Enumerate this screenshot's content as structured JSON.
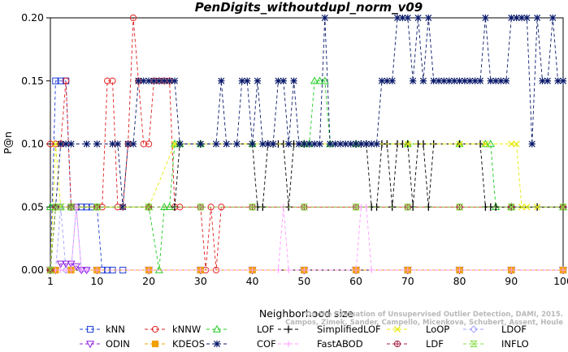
{
  "chart_data": {
    "type": "line",
    "title": "PenDigits_withoutdupl_norm_v09",
    "xlabel": "Neighborhood size",
    "ylabel": "P@n",
    "xlim": [
      1,
      100
    ],
    "ylim": [
      0,
      0.2
    ],
    "x_ticks": [
      "1",
      "10",
      "20",
      "30",
      "40",
      "50",
      "60",
      "70",
      "80",
      "90",
      "100"
    ],
    "y_ticks": [
      "0.00",
      "0.05",
      "0.10",
      "0.15",
      "0.20"
    ],
    "grid": false,
    "legend_position": "bottom",
    "watermark": [
      "On the Evaluation of Unsupervised Outlier Detection, DAMI, 2015.",
      "Campos, Zimek, Sander, Campello, Micenkova, Schubert, Assent, Houle"
    ],
    "series": [
      {
        "name": "kNN",
        "color": "#1f3fd8",
        "marker": "square",
        "x": [
          1,
          2,
          3,
          4,
          5,
          6,
          7,
          8,
          9,
          10,
          11,
          12,
          13,
          15,
          20,
          30,
          40,
          50,
          60,
          70,
          80,
          90,
          100
        ],
        "y": [
          0.0,
          0.15,
          0.15,
          0.15,
          0.05,
          0.05,
          0.05,
          0.05,
          0.05,
          0.05,
          0.0,
          0.0,
          0.0,
          0.0,
          0.0,
          0.0,
          0.0,
          0.0,
          0.0,
          0.0,
          0.0,
          0.0,
          0.0
        ]
      },
      {
        "name": "kNNW",
        "color": "#e02020",
        "marker": "circle",
        "x": [
          1,
          2,
          3,
          4,
          5,
          6,
          10,
          11,
          12,
          13,
          14,
          15,
          16,
          17,
          18,
          19,
          20,
          21,
          22,
          23,
          24,
          25,
          26,
          30,
          31,
          32,
          33,
          34,
          40,
          50,
          60,
          70,
          80,
          90,
          100
        ],
        "y": [
          0.1,
          0.1,
          0.1,
          0.15,
          0.05,
          0.05,
          0.05,
          0.05,
          0.15,
          0.15,
          0.05,
          0.05,
          0.1,
          0.2,
          0.15,
          0.1,
          0.1,
          0.15,
          0.15,
          0.15,
          0.15,
          0.05,
          0.05,
          0.05,
          0.0,
          0.05,
          0.0,
          0.05,
          0.05,
          0.05,
          0.05,
          0.05,
          0.05,
          0.05,
          0.05
        ]
      },
      {
        "name": "LOF",
        "color": "#22cc22",
        "marker": "triangle",
        "x": [
          1,
          2,
          3,
          5,
          10,
          20,
          22,
          23,
          24,
          25,
          26,
          30,
          40,
          50,
          51,
          52,
          53,
          54,
          55,
          60,
          70,
          80,
          85,
          86,
          87,
          90,
          100
        ],
        "y": [
          0.05,
          0.05,
          0.05,
          0.05,
          0.05,
          0.05,
          0.0,
          0.05,
          0.05,
          0.1,
          0.1,
          0.1,
          0.1,
          0.1,
          0.1,
          0.15,
          0.15,
          0.15,
          0.1,
          0.1,
          0.1,
          0.1,
          0.1,
          0.1,
          0.05,
          0.05,
          0.05
        ]
      },
      {
        "name": "SimplifiedLOF",
        "color": "#000000",
        "marker": "plus",
        "x": [
          1,
          2,
          5,
          20,
          25,
          26,
          30,
          40,
          41,
          42,
          43,
          44,
          45,
          46,
          47,
          48,
          50,
          60,
          61,
          62,
          63,
          64,
          65,
          66,
          67,
          68,
          69,
          70,
          71,
          72,
          73,
          74,
          75,
          80,
          84,
          85,
          86,
          87,
          90,
          95,
          100
        ],
        "y": [
          0.0,
          0.05,
          0.05,
          0.05,
          0.05,
          0.1,
          0.1,
          0.1,
          0.05,
          0.05,
          0.1,
          0.1,
          0.1,
          0.1,
          0.05,
          0.1,
          0.1,
          0.1,
          0.1,
          0.1,
          0.05,
          0.05,
          0.1,
          0.1,
          0.05,
          0.1,
          0.1,
          0.1,
          0.05,
          0.1,
          0.1,
          0.05,
          0.1,
          0.1,
          0.1,
          0.05,
          0.05,
          0.05,
          0.05,
          0.05,
          0.05
        ]
      },
      {
        "name": "LoOP",
        "color": "#e8e800",
        "marker": "x",
        "x": [
          1,
          2,
          3,
          10,
          20,
          25,
          30,
          40,
          50,
          60,
          70,
          80,
          85,
          90,
          91,
          92,
          93,
          95,
          100
        ],
        "y": [
          0.0,
          0.1,
          0.05,
          0.05,
          0.05,
          0.1,
          0.1,
          0.1,
          0.1,
          0.1,
          0.1,
          0.1,
          0.1,
          0.1,
          0.1,
          0.05,
          0.05,
          0.05,
          0.05
        ]
      },
      {
        "name": "LDOF",
        "color": "#a0a0ff",
        "marker": "diamond",
        "x": [
          1,
          2,
          3,
          4,
          5,
          6,
          7,
          8,
          10,
          20,
          30,
          40,
          50,
          60,
          70,
          80,
          90,
          100
        ],
        "y": [
          0.0,
          0.0,
          0.05,
          0.0,
          0.0,
          0.05,
          0.0,
          0.0,
          0.0,
          0.0,
          0.0,
          0.0,
          0.0,
          0.0,
          0.0,
          0.0,
          0.0,
          0.0
        ]
      },
      {
        "name": "ODIN",
        "color": "#9020e0",
        "marker": "triangle-down",
        "x": [
          1,
          2,
          3,
          4,
          5,
          6,
          7,
          8,
          10,
          20,
          30,
          40,
          50,
          60,
          70,
          80,
          90,
          100
        ],
        "y": [
          0.0,
          0.0,
          0.005,
          0.005,
          0.005,
          0.003,
          0.0,
          0.0,
          0.0,
          0.0,
          0.0,
          0.0,
          0.0,
          0.0,
          0.0,
          0.0,
          0.0,
          0.0
        ]
      },
      {
        "name": "KDEOS",
        "color": "#f0a000",
        "marker": "square-filled",
        "x": [
          1,
          2,
          5,
          10,
          20,
          30,
          40,
          50,
          60,
          70,
          80,
          90,
          100
        ],
        "y": [
          0.0,
          0.0,
          0.0,
          0.0,
          0.0,
          0.0,
          0.0,
          0.0,
          0.0,
          0.0,
          0.0,
          0.0,
          0.0
        ]
      },
      {
        "name": "COF",
        "color": "#0a1a6a",
        "marker": "asterisk",
        "x": [
          1,
          2,
          3,
          4,
          5,
          8,
          10,
          13,
          14,
          15,
          16,
          17,
          18,
          19,
          20,
          21,
          22,
          23,
          24,
          25,
          26,
          30,
          33,
          34,
          35,
          37,
          38,
          39,
          40,
          41,
          42,
          43,
          44,
          45,
          46,
          47,
          48,
          49,
          50,
          51,
          52,
          53,
          54,
          55,
          56,
          57,
          58,
          59,
          60,
          61,
          62,
          63,
          64,
          65,
          66,
          67,
          68,
          69,
          70,
          71,
          72,
          73,
          74,
          75,
          76,
          77,
          78,
          79,
          80,
          81,
          82,
          83,
          84,
          85,
          86,
          87,
          88,
          89,
          90,
          91,
          92,
          93,
          94,
          95,
          96,
          97,
          98,
          99,
          100
        ],
        "y": [
          0.0,
          0.05,
          0.1,
          0.1,
          0.1,
          0.1,
          0.1,
          0.1,
          0.1,
          0.05,
          0.1,
          0.1,
          0.15,
          0.15,
          0.15,
          0.15,
          0.15,
          0.15,
          0.15,
          0.15,
          0.1,
          0.1,
          0.1,
          0.15,
          0.1,
          0.1,
          0.15,
          0.15,
          0.1,
          0.15,
          0.1,
          0.1,
          0.1,
          0.15,
          0.15,
          0.1,
          0.15,
          0.1,
          0.1,
          0.1,
          0.1,
          0.1,
          0.2,
          0.1,
          0.1,
          0.1,
          0.1,
          0.1,
          0.1,
          0.1,
          0.1,
          0.1,
          0.1,
          0.15,
          0.15,
          0.15,
          0.2,
          0.2,
          0.2,
          0.15,
          0.2,
          0.15,
          0.2,
          0.15,
          0.15,
          0.15,
          0.15,
          0.15,
          0.15,
          0.15,
          0.15,
          0.15,
          0.15,
          0.2,
          0.15,
          0.15,
          0.15,
          0.15,
          0.2,
          0.2,
          0.2,
          0.2,
          0.1,
          0.2,
          0.15,
          0.15,
          0.2,
          0.15,
          0.15
        ]
      },
      {
        "name": "FastABOD",
        "color": "#ff99ff",
        "marker": "plus-light",
        "x": [
          1,
          2,
          3,
          4,
          5,
          6,
          7,
          8,
          10,
          20,
          30,
          40,
          45,
          46,
          47,
          50,
          60,
          61,
          62,
          63,
          70,
          80,
          90,
          100
        ],
        "y": [
          0.0,
          0.0,
          0.0,
          0.0,
          0.0,
          0.05,
          0.0,
          0.0,
          0.0,
          0.0,
          0.0,
          0.0,
          0.0,
          0.05,
          0.0,
          0.0,
          0.0,
          0.05,
          0.05,
          0.0,
          0.0,
          0.0,
          0.0,
          0.0
        ]
      },
      {
        "name": "LDF",
        "color": "#a02040",
        "marker": "circle-plus",
        "x": [
          1,
          2,
          5,
          10,
          20,
          30,
          40,
          50,
          60,
          70,
          80,
          90,
          100
        ],
        "y": [
          0.0,
          0.05,
          0.05,
          0.05,
          0.05,
          0.05,
          0.05,
          0.05,
          0.05,
          0.05,
          0.05,
          0.05,
          0.05
        ]
      },
      {
        "name": "INFLO",
        "color": "#88dd44",
        "marker": "hourglass",
        "x": [
          1,
          2,
          3,
          5,
          10,
          20,
          30,
          40,
          50,
          60,
          70,
          80,
          90,
          100
        ],
        "y": [
          0.0,
          0.05,
          0.05,
          0.05,
          0.05,
          0.05,
          0.05,
          0.05,
          0.05,
          0.05,
          0.05,
          0.05,
          0.05,
          0.05
        ]
      }
    ]
  }
}
